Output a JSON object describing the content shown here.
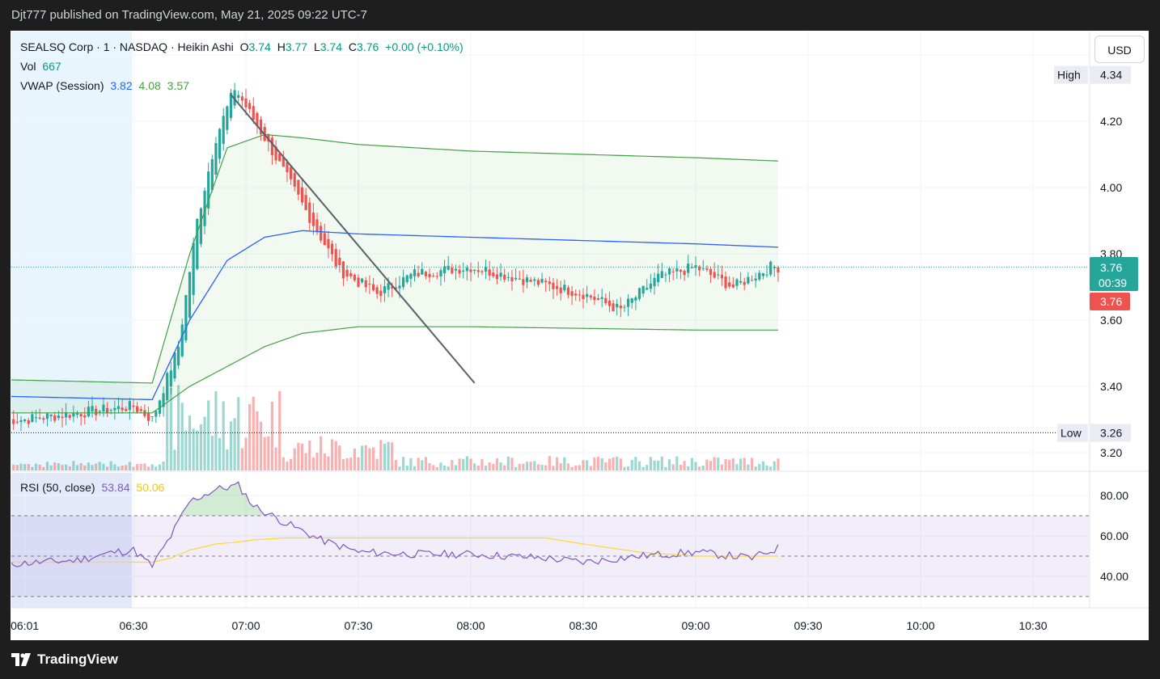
{
  "header": {
    "published": "Djt777 published on TradingView.com, May 21, 2025 09:22 UTC-7"
  },
  "legend": {
    "symbol": "SEALSQ Corp · 1 · NASDAQ · Heikin Ashi",
    "o_label": "O",
    "o_val": "3.74",
    "h_label": "H",
    "h_val": "3.77",
    "l_label": "L",
    "l_val": "3.74",
    "c_label": "C",
    "c_val": "3.76",
    "change": "+0.00 (+0.10%)",
    "vol_label": "Vol",
    "vol_val": "667",
    "vwap_label": "VWAP (Session)",
    "vwap_mid": "3.82",
    "vwap_up": "4.08",
    "vwap_low": "3.57",
    "rsi_label": "RSI (50, close)",
    "rsi_val": "53.84",
    "rsi_ma": "50.06"
  },
  "currency_button": "USD",
  "price_axis": {
    "ticks": [
      "4.20",
      "4.00",
      "3.80",
      "3.60",
      "3.40",
      "3.20"
    ],
    "high_label": "High",
    "high_value": "4.34",
    "low_label": "Low",
    "low_value": "3.26",
    "last_price": "3.76",
    "countdown": "00:39",
    "last_close_tag": "3.76"
  },
  "rsi_axis": {
    "ticks": [
      "80.00",
      "60.00",
      "40.00"
    ]
  },
  "time_axis": {
    "ticks": [
      "06:01",
      "06:30",
      "07:00",
      "07:30",
      "08:00",
      "08:30",
      "09:00",
      "09:30",
      "10:00",
      "10:30"
    ]
  },
  "footer": {
    "brand": "TradingView"
  },
  "colors": {
    "up": "#26a69a",
    "down": "#ef5350",
    "vwap": "#2962ff",
    "band": "#4caf50",
    "rsi": "#7e57c2",
    "rsi_ma": "#fdd835",
    "bg": "#1e1e1e"
  },
  "chart_data": {
    "type": "candlestick",
    "ylim": [
      3.16,
      4.38
    ],
    "x_range": [
      "05:56",
      "10:44"
    ],
    "price_series_approx": {
      "times": [
        "06:01",
        "06:30",
        "06:35",
        "06:42",
        "06:47",
        "06:52",
        "06:57",
        "07:05",
        "07:15",
        "07:25",
        "07:35",
        "07:45",
        "08:00",
        "08:15",
        "08:30",
        "08:40",
        "08:50",
        "09:00",
        "09:10",
        "09:20"
      ],
      "close": [
        3.3,
        3.34,
        3.3,
        3.52,
        3.9,
        4.15,
        4.3,
        4.15,
        3.95,
        3.75,
        3.68,
        3.74,
        3.76,
        3.72,
        3.68,
        3.63,
        3.73,
        3.76,
        3.7,
        3.76
      ]
    },
    "vwap": {
      "times": [
        "05:56",
        "06:35",
        "06:45",
        "06:55",
        "07:05",
        "07:15",
        "07:30",
        "08:00",
        "09:00",
        "09:22"
      ],
      "mid": [
        3.37,
        3.36,
        3.6,
        3.78,
        3.85,
        3.87,
        3.86,
        3.85,
        3.83,
        3.82
      ],
      "upper": [
        3.42,
        3.41,
        3.8,
        4.12,
        4.16,
        4.15,
        4.13,
        4.11,
        4.09,
        4.08
      ],
      "lower": [
        3.32,
        3.32,
        3.4,
        3.46,
        3.52,
        3.56,
        3.58,
        3.58,
        3.57,
        3.57
      ]
    },
    "trendline": {
      "start": [
        "06:56",
        4.28
      ],
      "end": [
        "08:01",
        3.41
      ]
    },
    "rsi": {
      "ylim": [
        20,
        95
      ],
      "bands": [
        70,
        50,
        30
      ],
      "times": [
        "05:56",
        "06:15",
        "06:25",
        "06:30",
        "06:35",
        "06:40",
        "06:45",
        "06:52",
        "06:58",
        "07:02",
        "07:10",
        "07:20",
        "07:30",
        "07:45",
        "08:00",
        "08:20",
        "08:30",
        "08:45",
        "09:00",
        "09:15",
        "09:22"
      ],
      "value": [
        46,
        48,
        52,
        53,
        45,
        60,
        77,
        83,
        85,
        75,
        67,
        58,
        52,
        51,
        51,
        49,
        47,
        50,
        52,
        49,
        54
      ],
      "ma": [
        47,
        47,
        47,
        47,
        47,
        49,
        53,
        56,
        57,
        58,
        59,
        59,
        59,
        59,
        59,
        59,
        56,
        52,
        50,
        50,
        50
      ]
    }
  }
}
